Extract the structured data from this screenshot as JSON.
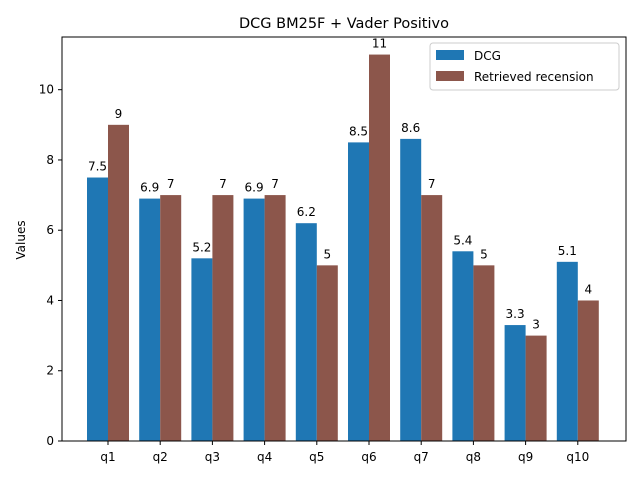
{
  "chart_data": {
    "type": "bar",
    "title": "DCG BM25F + Vader Positivo",
    "xlabel": "",
    "ylabel": "Values",
    "categories": [
      "q1",
      "q2",
      "q3",
      "q4",
      "q5",
      "q6",
      "q7",
      "q8",
      "q9",
      "q10"
    ],
    "series": [
      {
        "name": "DCG",
        "color": "#1f77b4",
        "values": [
          7.5,
          6.9,
          5.2,
          6.9,
          6.2,
          8.5,
          8.6,
          5.4,
          3.3,
          5.1
        ],
        "labels": [
          "7.5",
          "6.9",
          "5.2",
          "6.9",
          "6.2",
          "8.5",
          "8.6",
          "5.4",
          "3.3",
          "5.1"
        ]
      },
      {
        "name": "Retrieved recension",
        "color": "#8c564b",
        "values": [
          9,
          7,
          7,
          7,
          5,
          11,
          7,
          5,
          3,
          4
        ],
        "labels": [
          "9",
          "7",
          "7",
          "7",
          "5",
          "11",
          "7",
          "5",
          "3",
          "4"
        ]
      }
    ],
    "ylim": [
      0,
      11.5
    ],
    "yticks": [
      0,
      2,
      4,
      6,
      8,
      10
    ],
    "grid": false,
    "legend_position": "top-right"
  }
}
